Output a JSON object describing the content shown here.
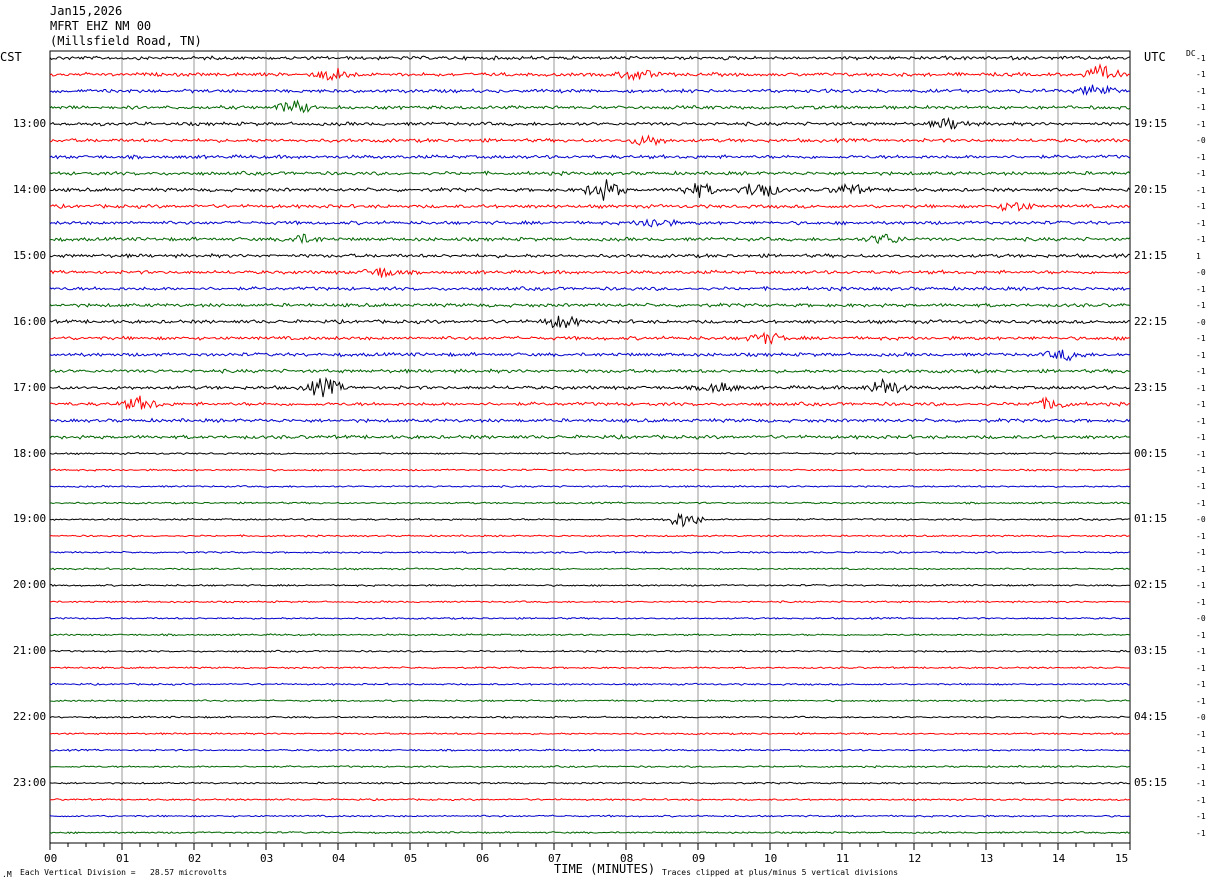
{
  "header": {
    "date": "Jan15,2026",
    "station": "MFRT EHZ NM 00",
    "location": "(Millsfield Road, TN)"
  },
  "left_tz": "CST",
  "right_tz": "UTC",
  "dc_label": "DC",
  "chart_data": {
    "type": "helicorder",
    "title": "",
    "xlabel": "TIME (MINUTES)",
    "xlim": [
      0,
      15
    ],
    "x_ticks": [
      "00",
      "01",
      "02",
      "03",
      "04",
      "05",
      "06",
      "07",
      "08",
      "09",
      "10",
      "11",
      "12",
      "13",
      "14",
      "15"
    ],
    "left_hour_labels": [
      "13:00",
      "14:00",
      "15:00",
      "16:00",
      "17:00",
      "18:00",
      "19:00",
      "20:00",
      "21:00",
      "22:00",
      "23:00"
    ],
    "right_hour_labels": [
      "19:15",
      "20:15",
      "21:15",
      "22:15",
      "23:15",
      "00:15",
      "01:15",
      "02:15",
      "03:15",
      "04:15",
      "05:15"
    ],
    "trace_colors": [
      "#000000",
      "#ff0000",
      "#0000cc",
      "#006600"
    ],
    "trace_count": 48,
    "dc_offsets": [
      "-1",
      "-1",
      "-1",
      "-1",
      "-1",
      "-0",
      "-1",
      "-1",
      "-1",
      "-1",
      "-1",
      "-1",
      "1",
      "-0",
      "-1",
      "-1",
      "-0",
      "-1",
      "-1",
      "-1",
      "-1",
      "-1",
      "-1",
      "-1",
      "-1",
      "-1",
      "-1",
      "-1",
      "-0",
      "-1",
      "-1",
      "-1",
      "-1",
      "-1",
      "-0",
      "-1",
      "-1",
      "-1",
      "-1",
      "-1",
      "-0",
      "-1",
      "-1",
      "-1",
      "-1",
      "-1",
      "-1",
      "-1"
    ],
    "events": [
      {
        "trace": 1,
        "minute": 3.95,
        "amp": 1.6
      },
      {
        "trace": 1,
        "minute": 8.15,
        "amp": 1.4
      },
      {
        "trace": 1,
        "minute": 14.6,
        "amp": 2.0
      },
      {
        "trace": 2,
        "minute": 14.55,
        "amp": 1.6
      },
      {
        "trace": 3,
        "minute": 3.4,
        "amp": 1.5
      },
      {
        "trace": 4,
        "minute": 12.5,
        "amp": 1.3
      },
      {
        "trace": 5,
        "minute": 8.3,
        "amp": 1.2
      },
      {
        "trace": 8,
        "minute": 7.7,
        "amp": 2.5
      },
      {
        "trace": 8,
        "minute": 9.0,
        "amp": 1.7
      },
      {
        "trace": 8,
        "minute": 9.85,
        "amp": 2.3
      },
      {
        "trace": 8,
        "minute": 11.1,
        "amp": 1.3
      },
      {
        "trace": 9,
        "minute": 13.4,
        "amp": 1.2
      },
      {
        "trace": 10,
        "minute": 8.4,
        "amp": 1.2
      },
      {
        "trace": 11,
        "minute": 3.5,
        "amp": 1.0
      },
      {
        "trace": 11,
        "minute": 11.6,
        "amp": 1.2
      },
      {
        "trace": 13,
        "minute": 4.6,
        "amp": 1.2
      },
      {
        "trace": 16,
        "minute": 7.1,
        "amp": 1.6
      },
      {
        "trace": 17,
        "minute": 9.95,
        "amp": 1.3
      },
      {
        "trace": 18,
        "minute": 14.1,
        "amp": 1.3
      },
      {
        "trace": 20,
        "minute": 3.8,
        "amp": 2.3
      },
      {
        "trace": 20,
        "minute": 11.6,
        "amp": 2.2
      },
      {
        "trace": 20,
        "minute": 9.3,
        "amp": 1.2
      },
      {
        "trace": 21,
        "minute": 1.25,
        "amp": 1.6
      },
      {
        "trace": 21,
        "minute": 13.9,
        "amp": 1.3
      },
      {
        "trace": 28,
        "minute": 8.8,
        "amp": 2.0
      }
    ]
  },
  "footer": {
    "left_note": "Each Vertical Division =   28.57 microvolts",
    "right_note": "Traces clipped at plus/minus 5 vertical divisions",
    "corner_mark": ".M"
  }
}
